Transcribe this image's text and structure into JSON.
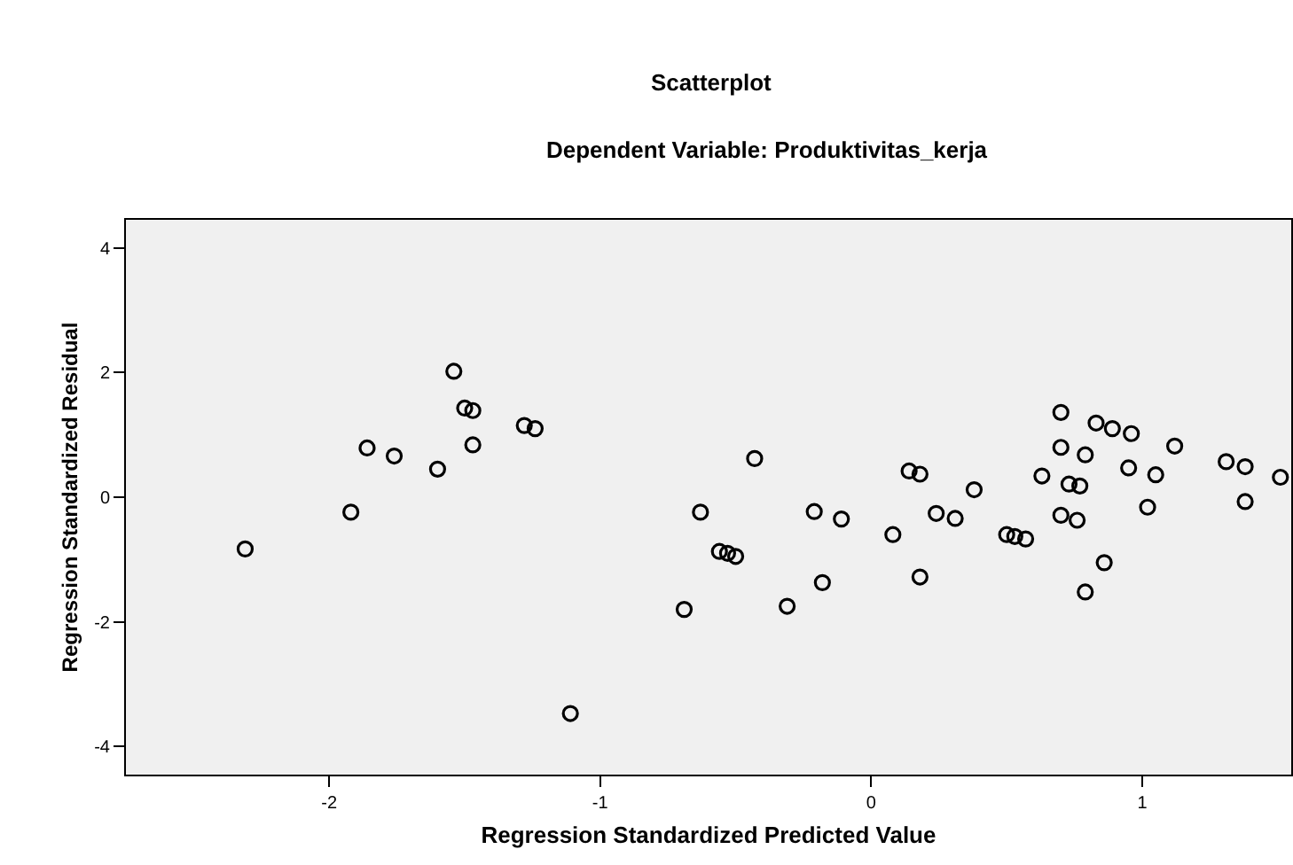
{
  "chart_data": {
    "type": "scatter",
    "title": "Scatterplot",
    "subtitle": "Dependent Variable: Produktivitas_kerja",
    "xlabel": "Regression Standardized Predicted Value",
    "ylabel": "Regression Standardized Residual",
    "x": [
      -2.31,
      -1.92,
      -1.86,
      -1.76,
      -1.6,
      -1.54,
      -1.5,
      -1.47,
      -1.47,
      -1.28,
      -1.24,
      -1.11,
      -0.69,
      -0.63,
      -0.56,
      -0.53,
      -0.5,
      -0.43,
      -0.31,
      -0.21,
      -0.18,
      -0.11,
      0.08,
      0.14,
      0.18,
      0.18,
      0.24,
      0.31,
      0.38,
      0.5,
      0.53,
      0.57,
      0.63,
      0.7,
      0.7,
      0.7,
      0.73,
      0.77,
      0.76,
      0.79,
      0.83,
      0.79,
      0.86,
      0.89,
      0.96,
      0.95,
      1.02,
      1.05,
      1.12,
      1.31,
      1.38,
      1.38,
      1.51
    ],
    "values": [
      -0.83,
      -0.24,
      0.79,
      0.66,
      0.45,
      2.02,
      1.43,
      1.39,
      0.84,
      1.15,
      1.1,
      -3.47,
      -1.8,
      -0.24,
      -0.87,
      -0.9,
      -0.95,
      0.62,
      -1.75,
      -0.23,
      -1.37,
      -0.35,
      -0.6,
      0.42,
      0.37,
      -1.28,
      -0.26,
      -0.34,
      0.12,
      -0.6,
      -0.63,
      -0.67,
      0.34,
      1.36,
      0.8,
      -0.29,
      0.21,
      0.18,
      -0.37,
      0.68,
      1.19,
      -1.52,
      -1.05,
      1.1,
      1.02,
      0.47,
      -0.16,
      0.36,
      0.82,
      0.57,
      0.49,
      -0.07,
      0.32
    ],
    "color": "#000000",
    "marker": "circle",
    "xlim": [
      -2.75,
      1.55
    ],
    "ylim": [
      -4.45,
      4.45
    ],
    "xticks": [
      -2,
      -1,
      0,
      1
    ],
    "yticks": [
      -4,
      -2,
      0,
      2,
      4
    ],
    "grid": false
  }
}
